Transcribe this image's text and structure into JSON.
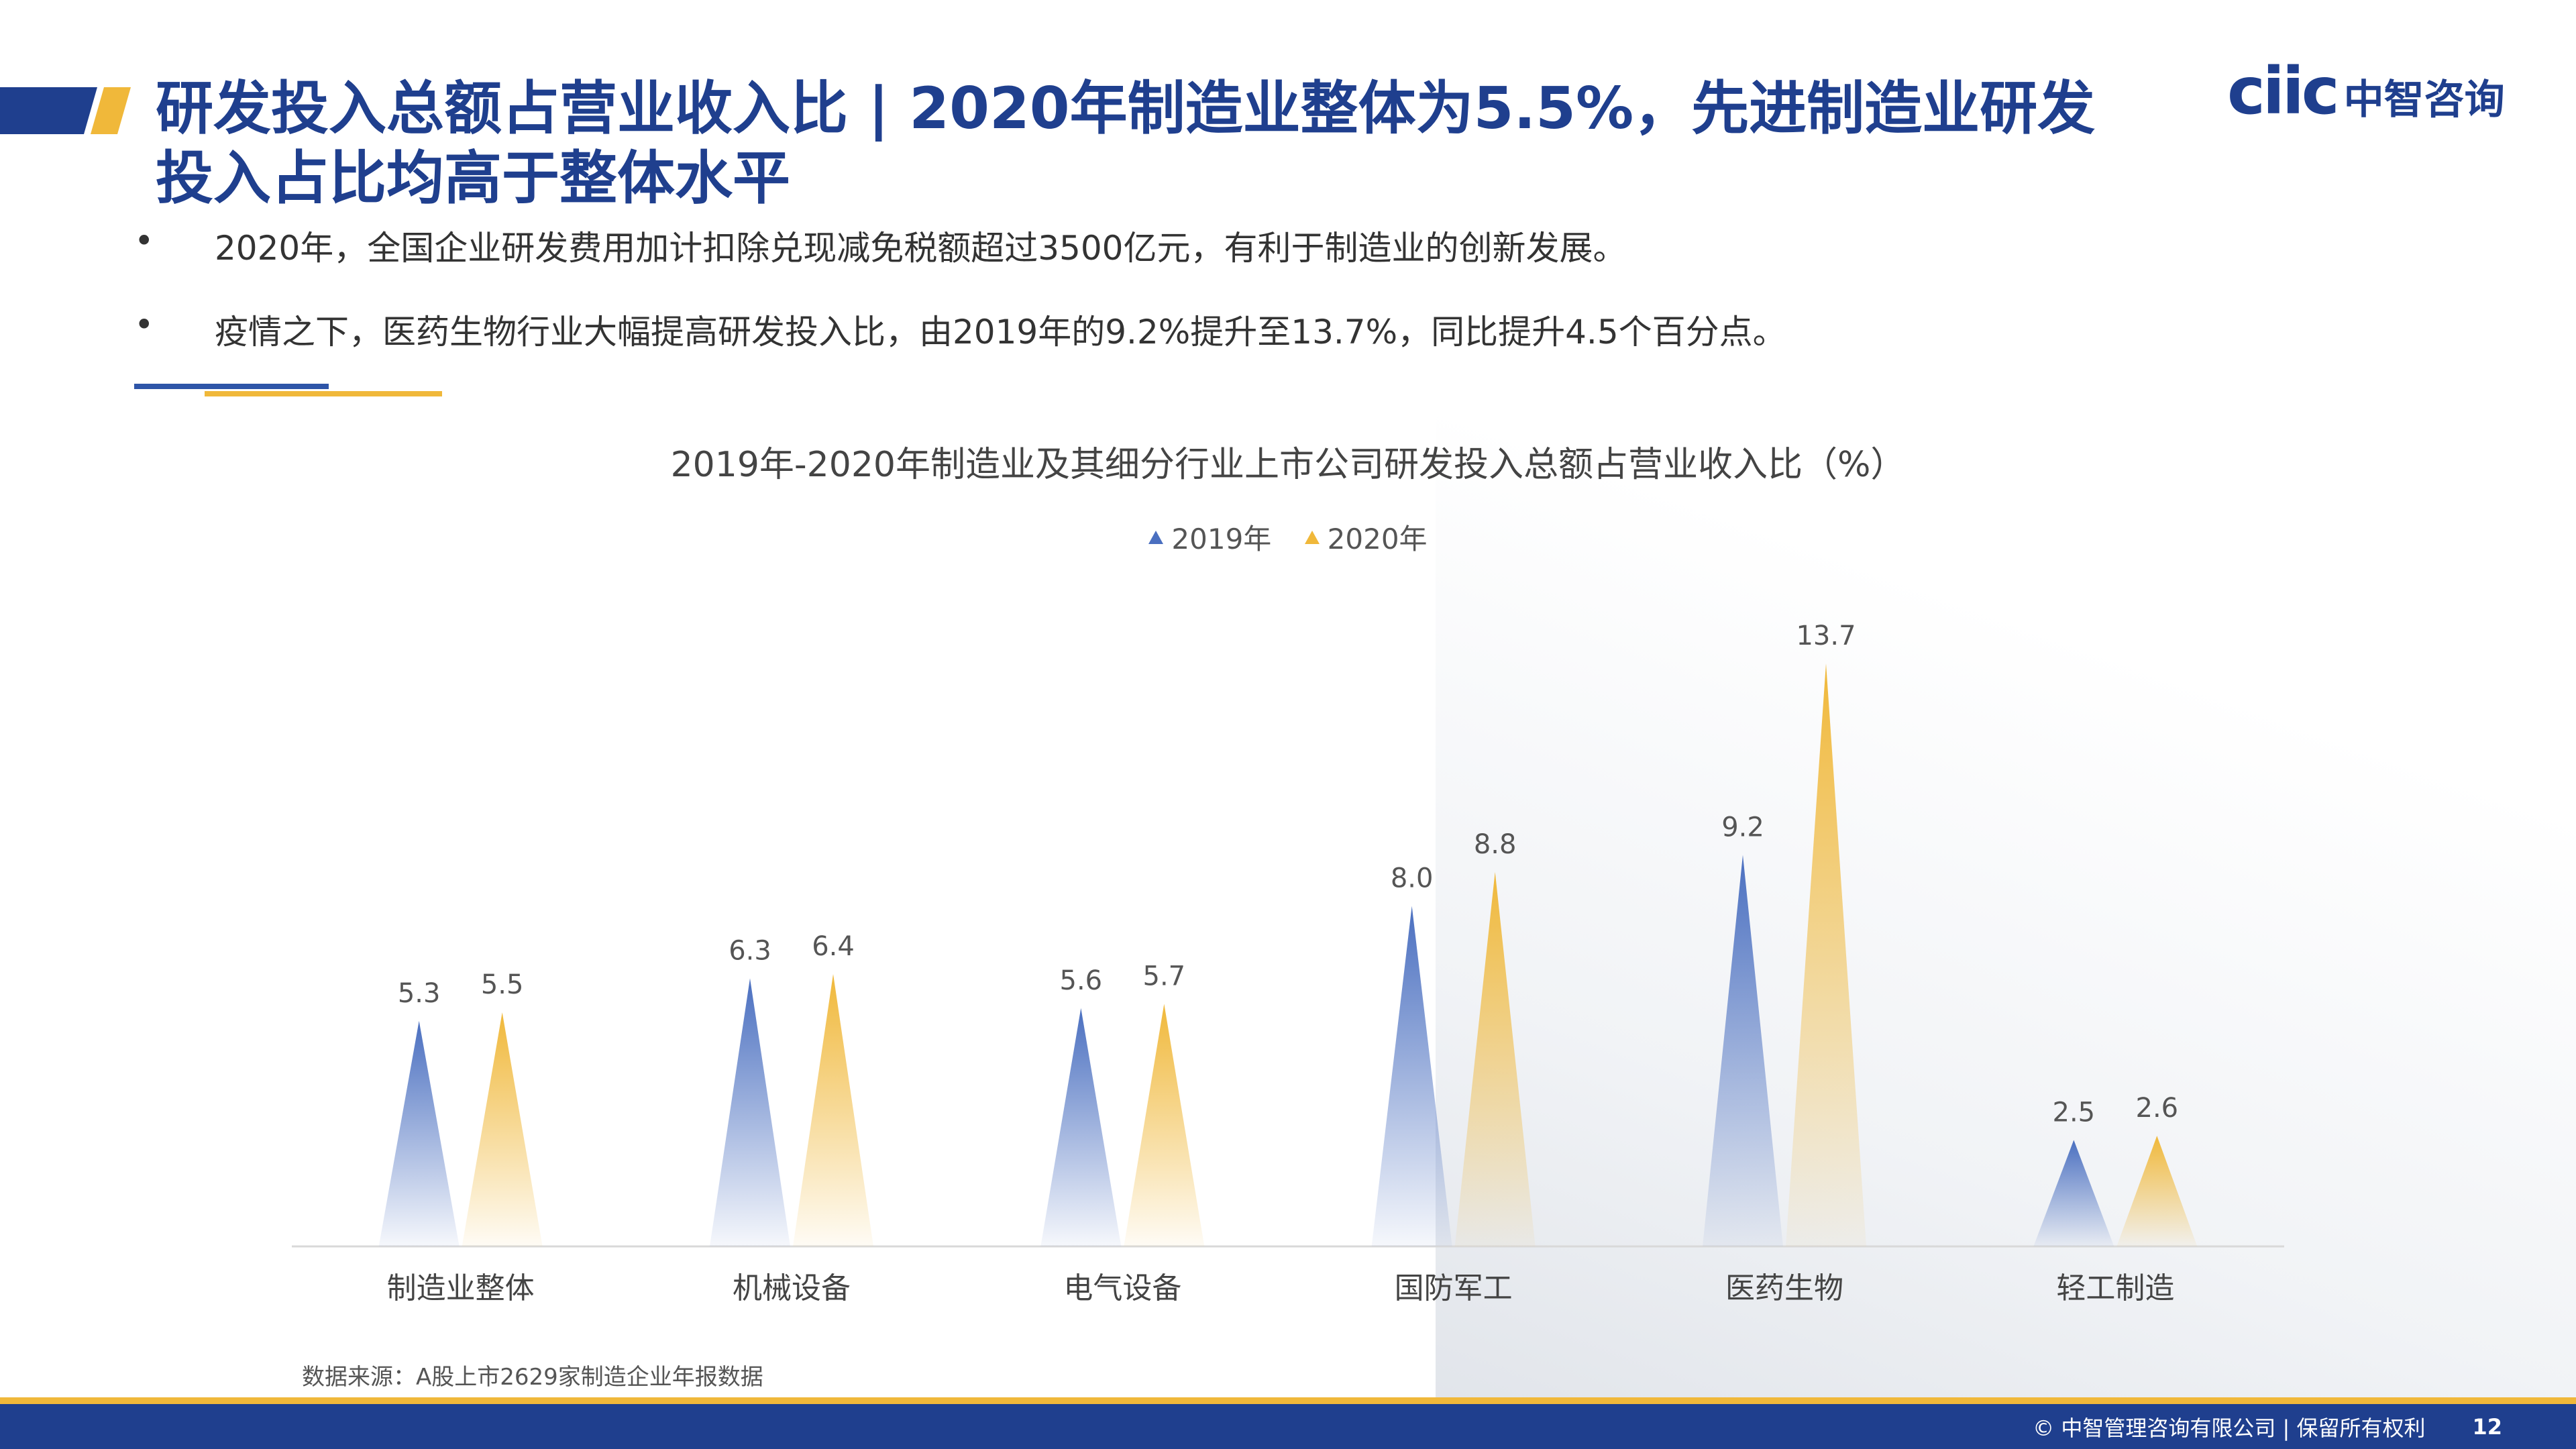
{
  "header": {
    "title": "研发投入总额占营业收入比 | 2020年制造业整体为5.5%，先进制造业研发投入占比均高于整体水平",
    "logo_brand": "ciic",
    "logo_cn": "中智咨询"
  },
  "bullets": [
    "2020年，全国企业研发费用加计扣除兑现减免税额超过3500亿元，有利于制造业的创新发展。",
    "疫情之下，医药生物行业大幅提高研发投入比，由2019年的9.2%提升至13.7%，同比提升4.5个百分点。"
  ],
  "bullet_symbol": "•",
  "chart_data": {
    "type": "bar",
    "title": "2019年-2020年制造业及其细分行业上市公司研发投入总额占营业收入比（%）",
    "categories": [
      "制造业整体",
      "机械设备",
      "电气设备",
      "国防军工",
      "医药生物",
      "轻工制造"
    ],
    "series": [
      {
        "name": "2019年",
        "values": [
          5.3,
          6.3,
          5.6,
          8.0,
          9.2,
          2.5
        ],
        "labels": [
          "5.3",
          "6.3",
          "5.6",
          "8.0",
          "9.2",
          "2.5"
        ],
        "color": "#4a6fc0"
      },
      {
        "name": "2020年",
        "values": [
          5.5,
          6.4,
          5.7,
          8.8,
          13.7,
          2.6
        ],
        "labels": [
          "5.5",
          "6.4",
          "5.7",
          "8.8",
          "13.7",
          "2.6"
        ],
        "color": "#f0b83a"
      }
    ],
    "ylim": [
      0,
      14
    ],
    "legend": "top-center",
    "grid": false,
    "mark_style": "triangle"
  },
  "source": "数据来源：A股上市2629家制造企业年报数据",
  "footer": {
    "copyright": "© 中智管理咨询有限公司 | 保留所有权利",
    "page": "12"
  },
  "colors": {
    "brand_blue": "#1f3f8e",
    "accent_gold": "#f0b83a"
  }
}
